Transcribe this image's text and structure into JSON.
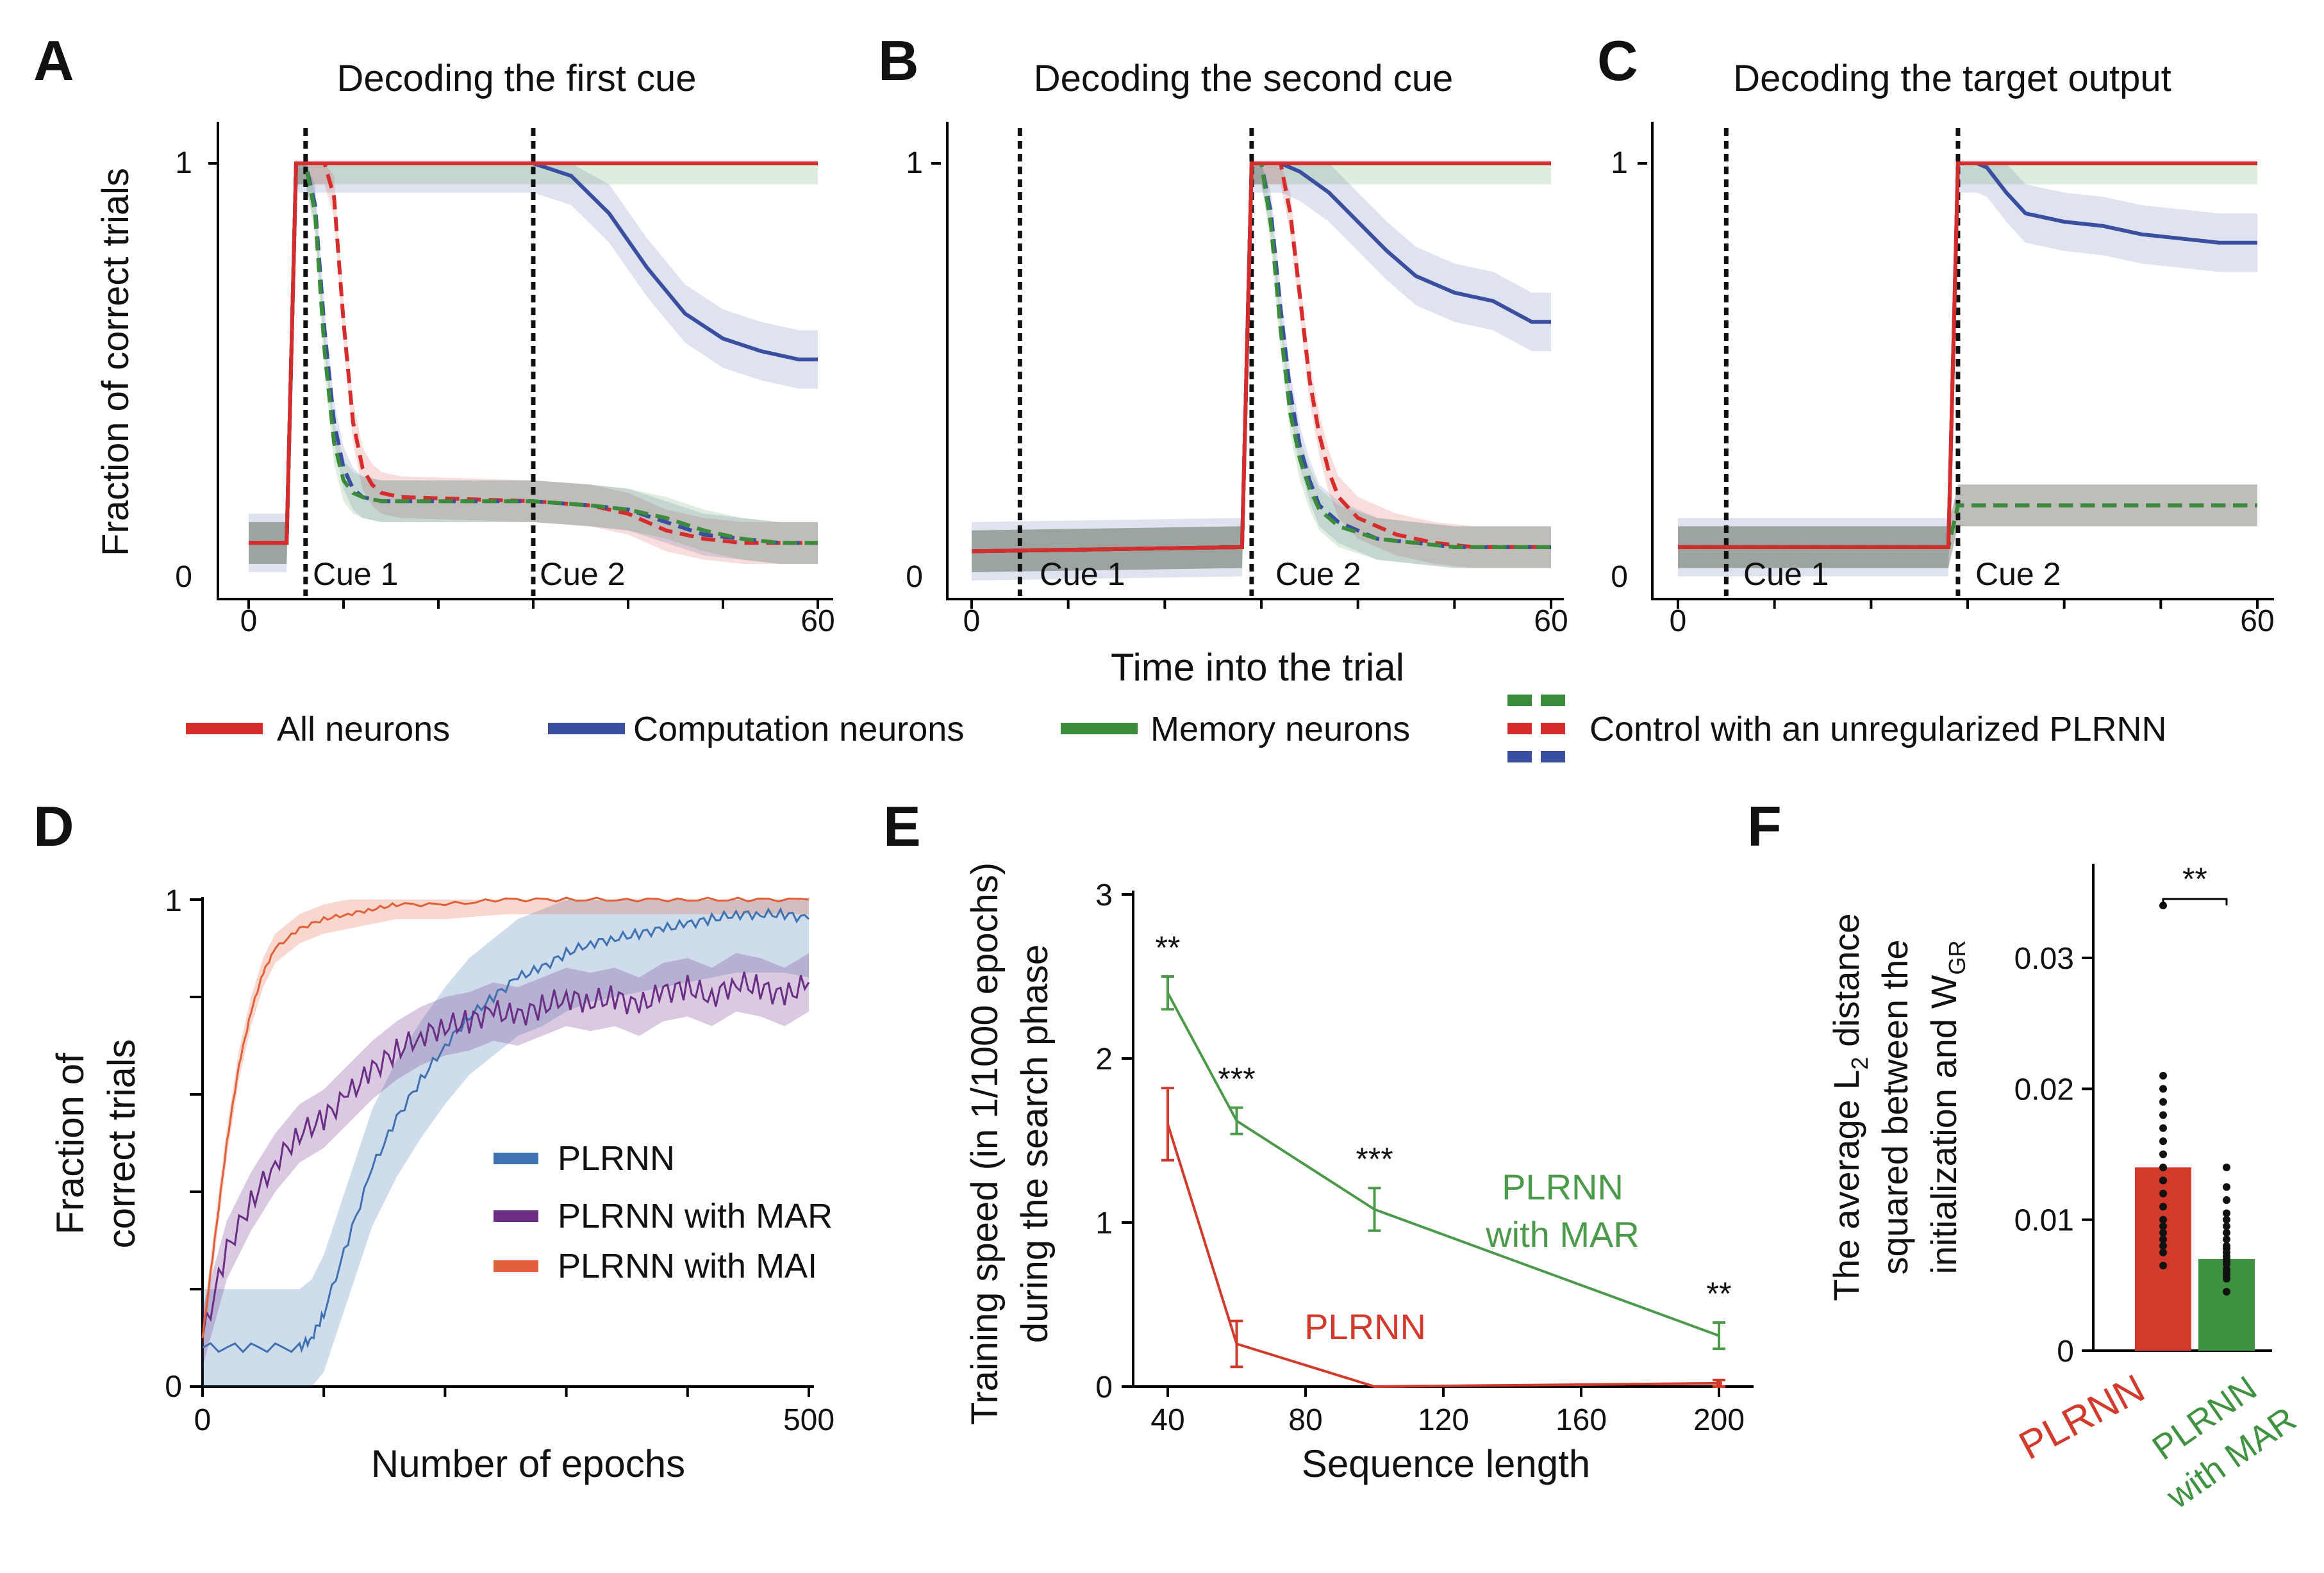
{
  "panels_top": {
    "A": {
      "letter": "A",
      "title": "Decoding the first cue",
      "cue1_label": "Cue 1",
      "cue2_label": "Cue 2",
      "cue1_time": 6,
      "cue2_time": 30
    },
    "B": {
      "letter": "B",
      "title": "Decoding the second cue",
      "cue1_label": "Cue 1",
      "cue2_label": "Cue 2",
      "cue1_time": 5,
      "cue2_time": 29
    },
    "C": {
      "letter": "C",
      "title": "Decoding the target output",
      "cue1_label": "Cue 1",
      "cue2_label": "Cue 2",
      "cue1_time": 5,
      "cue2_time": 29
    },
    "ylabel": "Fraction of correct trials",
    "xlabel": "Time into the trial",
    "x_ticks": [
      "0",
      "60"
    ],
    "y_ticks": [
      "0",
      "1"
    ]
  },
  "legend_top": {
    "all": "All neurons",
    "computation": "Computation neurons",
    "memory": "Memory neurons",
    "control": "Control with an unregularized PLRNN"
  },
  "panel_D": {
    "letter": "D",
    "ylabel_line1": "Fraction of",
    "ylabel_line2": "correct trials",
    "xlabel": "Number of epochs",
    "x_ticks": [
      "0",
      "500"
    ],
    "y_ticks": [
      "0",
      "1"
    ],
    "legend": [
      "PLRNN",
      "PLRNN with MAR",
      "PLRNN with MAI"
    ]
  },
  "panel_E": {
    "letter": "E",
    "ylabel_line1": "Training speed (in 1/1000 epochs)",
    "ylabel_line2": "during the search phase",
    "xlabel": "Sequence length",
    "x_ticks": [
      "40",
      "80",
      "120",
      "160",
      "200"
    ],
    "y_ticks": [
      "0",
      "1",
      "2",
      "3"
    ],
    "label_plrnn": "PLRNN",
    "label_mar_line1": "PLRNN",
    "label_mar_line2": "with MAR",
    "stars": [
      "**",
      "***",
      "***",
      "**"
    ]
  },
  "panel_F": {
    "letter": "F",
    "ylabel_line1": "The average L",
    "ylabel_sub2": "2",
    "ylabel_line1b": " distance",
    "ylabel_line2": "squared between the",
    "ylabel_line3": "initialization and W",
    "ylabel_subGR": "GR",
    "y_ticks": [
      "0",
      "0.01",
      "0.02",
      "0.03"
    ],
    "xlabel_plrnn": "PLRNN",
    "xlabel_mar_line1": "PLRNN",
    "xlabel_mar_line2": "with MAR",
    "stars": "**"
  },
  "colors": {
    "red": "#d62c2c",
    "blue": "#3a4fa0",
    "green": "#3a8c3a",
    "plrnn_blue": "#3f72b0",
    "mar_purple": "#6b2d86",
    "mai_orange": "#e0603a",
    "f_red": "#d23a2c",
    "f_green": "#3f923f",
    "e_red": "#d23a2c",
    "e_green": "#4a9a4a"
  },
  "chart_data": [
    {
      "id": "A",
      "type": "line",
      "title": "Decoding the first cue",
      "xlabel": "Time into the trial",
      "ylabel": "Fraction of correct trials",
      "xlim": [
        0,
        60
      ],
      "ylim": [
        0,
        1
      ],
      "series": [
        {
          "name": "All neurons",
          "x": [
            0,
            4,
            5,
            6,
            30,
            60
          ],
          "y": [
            0.09,
            0.09,
            1,
            1,
            1,
            1
          ]
        },
        {
          "name": "Computation neurons",
          "x": [
            0,
            4,
            5,
            30,
            34,
            38,
            42,
            46,
            50,
            54,
            58,
            60
          ],
          "y": [
            0.09,
            0.09,
            1,
            1,
            0.97,
            0.88,
            0.75,
            0.64,
            0.58,
            0.55,
            0.53,
            0.53
          ]
        },
        {
          "name": "Memory neurons",
          "x": [
            0,
            4,
            5,
            30,
            60
          ],
          "y": [
            0.09,
            0.09,
            1,
            1,
            1
          ]
        },
        {
          "name": "Control (red dashed)",
          "x": [
            0,
            4,
            5,
            8,
            9,
            10,
            11,
            12,
            13,
            14,
            16,
            30,
            36,
            40,
            44,
            48,
            52,
            56,
            60
          ],
          "y": [
            0.09,
            0.09,
            1,
            1,
            0.92,
            0.62,
            0.38,
            0.27,
            0.23,
            0.21,
            0.2,
            0.19,
            0.18,
            0.16,
            0.12,
            0.1,
            0.09,
            0.09,
            0.09
          ]
        },
        {
          "name": "Control (blue dashed)",
          "x": [
            0,
            4,
            5,
            6,
            7,
            8,
            9,
            10,
            11,
            12,
            14,
            30,
            36,
            40,
            44,
            48,
            52,
            56,
            60
          ],
          "y": [
            0.09,
            0.09,
            1,
            1,
            0.9,
            0.6,
            0.38,
            0.27,
            0.22,
            0.2,
            0.19,
            0.19,
            0.18,
            0.17,
            0.14,
            0.11,
            0.1,
            0.09,
            0.09
          ]
        },
        {
          "name": "Control (green dashed)",
          "x": [
            0,
            4,
            5,
            6,
            7,
            8,
            9,
            10,
            11,
            12,
            14,
            30,
            36,
            40,
            44,
            48,
            52,
            56,
            60
          ],
          "y": [
            0.09,
            0.09,
            1,
            1,
            0.88,
            0.55,
            0.33,
            0.24,
            0.21,
            0.2,
            0.19,
            0.19,
            0.18,
            0.17,
            0.15,
            0.12,
            0.1,
            0.09,
            0.09
          ]
        }
      ]
    },
    {
      "id": "B",
      "type": "line",
      "title": "Decoding the second cue",
      "xlabel": "Time into the trial",
      "ylabel": "Fraction of correct trials",
      "xlim": [
        0,
        60
      ],
      "ylim": [
        0,
        1
      ],
      "series": [
        {
          "name": "All neurons",
          "x": [
            0,
            28,
            29,
            60
          ],
          "y": [
            0.07,
            0.08,
            1,
            1
          ]
        },
        {
          "name": "Computation neurons",
          "x": [
            0,
            28,
            29,
            32,
            34,
            37,
            40,
            43,
            46,
            50,
            54,
            58,
            60
          ],
          "y": [
            0.07,
            0.08,
            1,
            1,
            0.98,
            0.93,
            0.86,
            0.79,
            0.73,
            0.69,
            0.67,
            0.62,
            0.62
          ]
        },
        {
          "name": "Memory neurons",
          "x": [
            0,
            28,
            29,
            60
          ],
          "y": [
            0.07,
            0.08,
            1,
            1
          ]
        },
        {
          "name": "Control (red dashed)",
          "x": [
            0,
            28,
            29,
            32,
            33,
            34,
            35,
            36,
            37,
            38,
            40,
            44,
            48,
            52,
            56,
            60
          ],
          "y": [
            0.07,
            0.08,
            1,
            1,
            0.88,
            0.68,
            0.48,
            0.35,
            0.26,
            0.2,
            0.15,
            0.11,
            0.09,
            0.08,
            0.08,
            0.08
          ]
        },
        {
          "name": "Control (blue dashed)",
          "x": [
            0,
            28,
            29,
            30,
            31,
            32,
            33,
            34,
            35,
            36,
            38,
            42,
            46,
            50,
            54,
            60
          ],
          "y": [
            0.07,
            0.08,
            1,
            1,
            0.88,
            0.65,
            0.45,
            0.32,
            0.24,
            0.18,
            0.14,
            0.1,
            0.09,
            0.08,
            0.08,
            0.08
          ]
        },
        {
          "name": "Control (green dashed)",
          "x": [
            0,
            28,
            29,
            30,
            31,
            32,
            33,
            34,
            35,
            36,
            38,
            42,
            46,
            50,
            54,
            60
          ],
          "y": [
            0.07,
            0.08,
            1,
            1,
            0.85,
            0.6,
            0.4,
            0.29,
            0.22,
            0.17,
            0.13,
            0.1,
            0.09,
            0.08,
            0.08,
            0.08
          ]
        }
      ]
    },
    {
      "id": "C",
      "type": "line",
      "title": "Decoding the target output",
      "xlabel": "Time into the trial",
      "ylabel": "Fraction of correct trials",
      "xlim": [
        0,
        60
      ],
      "ylim": [
        0,
        1
      ],
      "series": [
        {
          "name": "All neurons",
          "x": [
            0,
            28,
            29,
            60
          ],
          "y": [
            0.08,
            0.08,
            1,
            1
          ]
        },
        {
          "name": "Computation neurons",
          "x": [
            0,
            28,
            29,
            31,
            32,
            34,
            36,
            40,
            44,
            48,
            52,
            56,
            60
          ],
          "y": [
            0.08,
            0.08,
            1,
            1,
            0.99,
            0.93,
            0.88,
            0.86,
            0.85,
            0.83,
            0.82,
            0.81,
            0.81
          ]
        },
        {
          "name": "Memory neurons",
          "x": [
            0,
            28,
            29,
            60
          ],
          "y": [
            0.08,
            0.08,
            1,
            1
          ]
        },
        {
          "name": "Control (red dashed)",
          "x": [
            0,
            28,
            29,
            60
          ],
          "y": [
            0.08,
            0.08,
            0.18,
            0.18
          ]
        },
        {
          "name": "Control (blue dashed)",
          "x": [
            0,
            28,
            29,
            60
          ],
          "y": [
            0.08,
            0.08,
            0.18,
            0.18
          ]
        },
        {
          "name": "Control (green dashed)",
          "x": [
            0,
            28,
            29,
            60
          ],
          "y": [
            0.08,
            0.08,
            0.18,
            0.18
          ]
        }
      ]
    },
    {
      "id": "D",
      "type": "line",
      "xlabel": "Number of epochs",
      "ylabel": "Fraction of correct trials",
      "xlim": [
        0,
        500
      ],
      "ylim": [
        0,
        1
      ],
      "series": [
        {
          "name": "PLRNN",
          "x": [
            0,
            40,
            80,
            90,
            100,
            120,
            140,
            160,
            180,
            200,
            220,
            240,
            260,
            280,
            300,
            320,
            340,
            360,
            380,
            400,
            420,
            440,
            460,
            480,
            500
          ],
          "y": [
            0.08,
            0.08,
            0.08,
            0.1,
            0.15,
            0.3,
            0.45,
            0.55,
            0.63,
            0.7,
            0.76,
            0.8,
            0.84,
            0.86,
            0.89,
            0.91,
            0.92,
            0.93,
            0.94,
            0.95,
            0.96,
            0.97,
            0.97,
            0.97,
            0.96
          ]
        },
        {
          "name": "PLRNN with MAR",
          "x": [
            0,
            20,
            40,
            60,
            80,
            100,
            120,
            140,
            160,
            180,
            200,
            220,
            240,
            260,
            280,
            300,
            320,
            340,
            360,
            380,
            400,
            420,
            440,
            460,
            480,
            500
          ],
          "y": [
            0.1,
            0.28,
            0.38,
            0.46,
            0.52,
            0.55,
            0.6,
            0.65,
            0.69,
            0.72,
            0.74,
            0.75,
            0.77,
            0.76,
            0.78,
            0.8,
            0.79,
            0.8,
            0.78,
            0.81,
            0.82,
            0.8,
            0.83,
            0.82,
            0.8,
            0.83
          ]
        },
        {
          "name": "PLRNN with MAI",
          "x": [
            0,
            10,
            20,
            30,
            40,
            50,
            60,
            80,
            100,
            120,
            140,
            160,
            200,
            250,
            300,
            350,
            400,
            450,
            500
          ],
          "y": [
            0.1,
            0.3,
            0.5,
            0.66,
            0.77,
            0.85,
            0.9,
            0.94,
            0.96,
            0.97,
            0.98,
            0.99,
            0.99,
            1,
            1,
            1,
            1,
            1,
            1
          ]
        }
      ]
    },
    {
      "id": "E",
      "type": "line",
      "xlabel": "Sequence length",
      "ylabel": "Training speed (in 1/1000 epochs) during the search phase",
      "xlim": [
        30,
        205
      ],
      "ylim": [
        0,
        3
      ],
      "series": [
        {
          "name": "PLRNN",
          "x": [
            40,
            60,
            100,
            200
          ],
          "y": [
            1.6,
            0.26,
            0.0,
            0.02
          ],
          "err": [
            0.22,
            0.14,
            0.0,
            0.02
          ]
        },
        {
          "name": "PLRNN with MAR",
          "x": [
            40,
            60,
            100,
            200
          ],
          "y": [
            2.4,
            1.62,
            1.08,
            0.31
          ],
          "err": [
            0.1,
            0.08,
            0.13,
            0.08
          ]
        }
      ],
      "annotations": [
        "**",
        "***",
        "***",
        "**"
      ]
    },
    {
      "id": "F",
      "type": "bar",
      "ylabel": "The average L2 distance squared between the initialization and WGR",
      "categories": [
        "PLRNN",
        "PLRNN with MAR"
      ],
      "values": [
        0.014,
        0.007
      ],
      "ylim": [
        0,
        0.037
      ],
      "points": {
        "PLRNN": [
          0.034,
          0.021,
          0.02,
          0.019,
          0.018,
          0.017,
          0.016,
          0.015,
          0.014,
          0.013,
          0.013,
          0.012,
          0.011,
          0.01,
          0.0095,
          0.009,
          0.0085,
          0.008,
          0.0075,
          0.0065
        ],
        "PLRNN with MAR": [
          0.014,
          0.0125,
          0.0115,
          0.0105,
          0.01,
          0.0095,
          0.009,
          0.0085,
          0.008,
          0.0078,
          0.0075,
          0.0072,
          0.007,
          0.0068,
          0.0066,
          0.0062,
          0.006,
          0.0058,
          0.0055,
          0.0045
        ]
      },
      "annotation": "**"
    }
  ]
}
